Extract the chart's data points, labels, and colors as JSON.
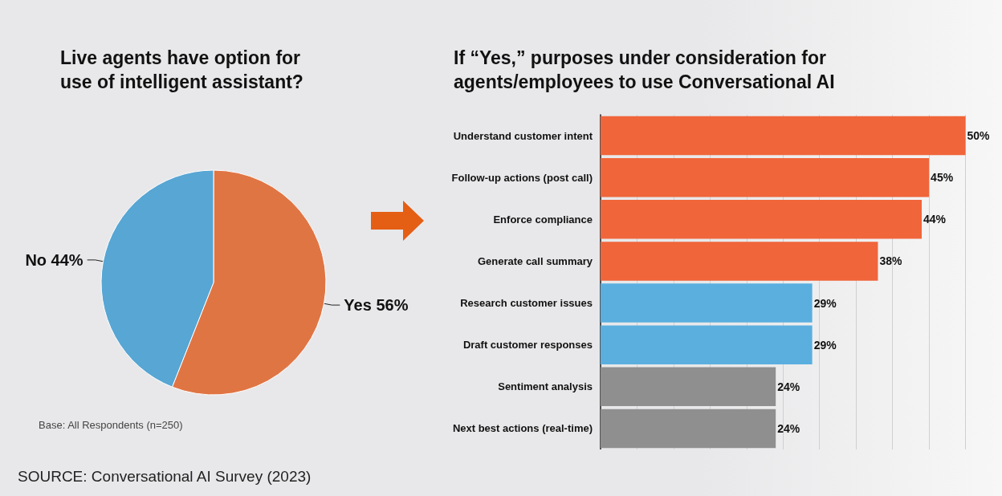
{
  "chart_data": [
    {
      "type": "pie",
      "title": "Live agents have option for\nuse of intelligent assistant?",
      "categories": [
        "Yes",
        "No"
      ],
      "values": [
        56,
        44
      ],
      "colors": [
        "#e07544",
        "#57a6d4"
      ],
      "value_labels": [
        "56%",
        "44%"
      ],
      "annotations": [
        "Base: All Respondents (n=250)",
        "SOURCE: Conversational AI Survey (2023)"
      ]
    },
    {
      "type": "bar",
      "orientation": "horizontal",
      "title": "If “Yes,” purposes under consideration for\nagents/employees to use Conversational AI",
      "categories": [
        "Understand customer intent",
        "Follow-up actions (post call)",
        "Enforce compliance",
        "Generate call summary",
        "Research customer issues",
        "Draft customer responses",
        "Sentiment analysis",
        "Next best actions (real-time)"
      ],
      "values": [
        50,
        45,
        44,
        38,
        29,
        29,
        24,
        24
      ],
      "colors": [
        "#f0653a",
        "#f0653a",
        "#f0653a",
        "#f0653a",
        "#5aafdf",
        "#5aafdf",
        "#8f8f8f",
        "#8f8f8f"
      ],
      "value_labels": [
        "50%",
        "45%",
        "44%",
        "38%",
        "29%",
        "29%",
        "24%",
        "24%"
      ],
      "xticks": [
        {
          "value": 0,
          "label": null
        },
        {
          "value": 5,
          "label": null
        },
        {
          "value": 10,
          "label": null
        },
        {
          "value": 15,
          "label": null
        },
        {
          "value": 20,
          "label": null
        },
        {
          "value": 25,
          "label": null
        },
        {
          "value": 30,
          "label": null
        },
        {
          "value": 35,
          "label": null
        },
        {
          "value": 40,
          "label": null
        },
        {
          "value": 45,
          "label": null
        },
        {
          "value": 50,
          "label": null
        }
      ],
      "grid": "x",
      "tick_labels": "y"
    }
  ]
}
